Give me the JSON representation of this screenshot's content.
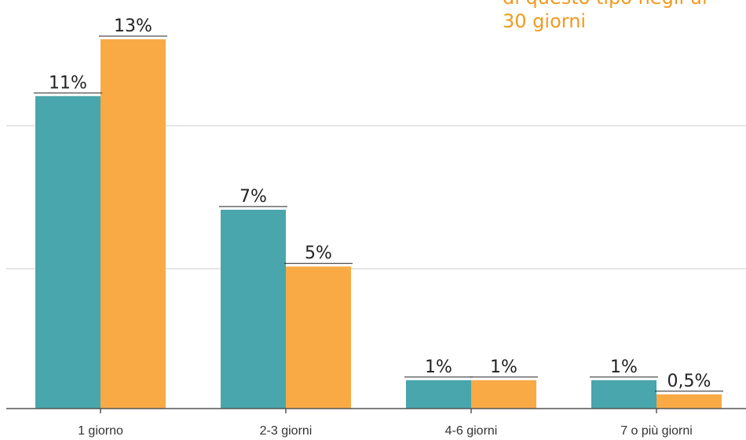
{
  "chart_data": {
    "type": "bar",
    "categories": [
      "1 giorno",
      "2-3 giorni",
      "4-6 giorni",
      "7 o più giorni"
    ],
    "series": [
      {
        "values": [
          11,
          7,
          1,
          1
        ],
        "labels": [
          "11%",
          "7%",
          "1%",
          "1%"
        ],
        "color": "#48a6ac"
      },
      {
        "values": [
          13,
          5,
          1,
          0.5
        ],
        "labels": [
          "13%",
          "5%",
          "1%",
          "0,5%"
        ],
        "color": "#f9aa45"
      }
    ],
    "ylim": [
      0,
      13
    ],
    "grid": true
  },
  "annotation": {
    "line1": "di questo tipo negli ul",
    "line2": "30 giorni"
  }
}
